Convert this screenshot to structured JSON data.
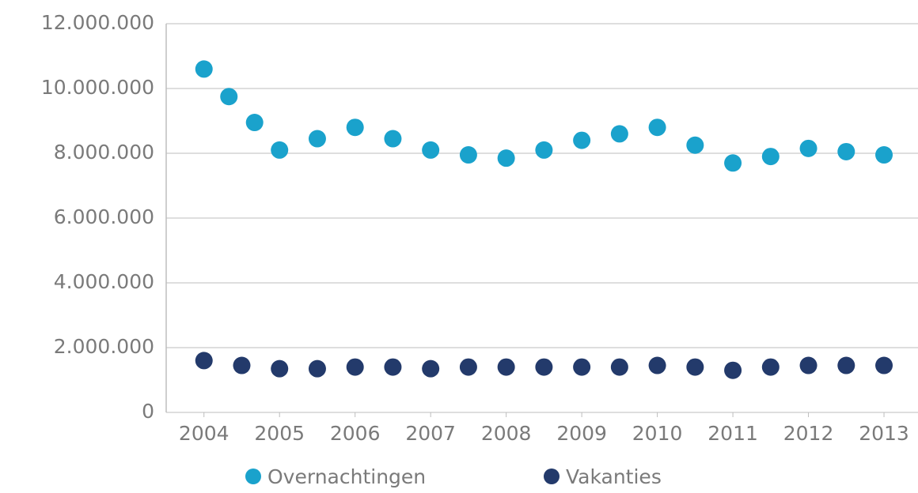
{
  "chart_data": {
    "type": "scatter",
    "xlim": [
      2003.5,
      2013.45
    ],
    "xticks": [
      2004,
      2005,
      2006,
      2007,
      2008,
      2009,
      2010,
      2011,
      2012,
      2013
    ],
    "ylim": [
      0,
      12000000
    ],
    "yticks": [
      0,
      {
        "value": 2000000,
        "label": "2.000.000"
      },
      {
        "value": 4000000,
        "label": "4.000.000"
      },
      {
        "value": 6000000,
        "label": "6.000.000"
      },
      {
        "value": 8000000,
        "label": "8.000.000"
      },
      {
        "value": 10000000,
        "label": "10.000.000"
      },
      {
        "value": 12000000,
        "label": "12.000.000"
      }
    ],
    "grid": true,
    "legend": "bottom",
    "series": [
      {
        "name": "Overnachtingen",
        "color": "#1aa2cc",
        "x": [
          2004,
          2004.33,
          2004.67,
          2005,
          2005.5,
          2006,
          2006.5,
          2007,
          2007.5,
          2008,
          2008.5,
          2009,
          2009.5,
          2010,
          2010.5,
          2011,
          2011.5,
          2012,
          2012.5,
          2013
        ],
        "values": [
          10600000,
          9750000,
          8950000,
          8100000,
          8450000,
          8800000,
          8450000,
          8100000,
          7950000,
          7850000,
          8100000,
          8400000,
          8600000,
          8800000,
          8250000,
          7700000,
          7900000,
          8150000,
          8050000,
          7950000
        ]
      },
      {
        "name": "Vakanties",
        "color": "#233a6b",
        "x": [
          2004,
          2004.5,
          2005,
          2005.5,
          2006,
          2006.5,
          2007,
          2007.5,
          2008,
          2008.5,
          2009,
          2009.5,
          2010,
          2010.5,
          2011,
          2011.5,
          2012,
          2012.5,
          2013
        ],
        "values": [
          1600000,
          1450000,
          1350000,
          1350000,
          1400000,
          1400000,
          1350000,
          1400000,
          1400000,
          1400000,
          1400000,
          1400000,
          1450000,
          1400000,
          1300000,
          1400000,
          1450000,
          1450000,
          1450000
        ]
      }
    ]
  }
}
